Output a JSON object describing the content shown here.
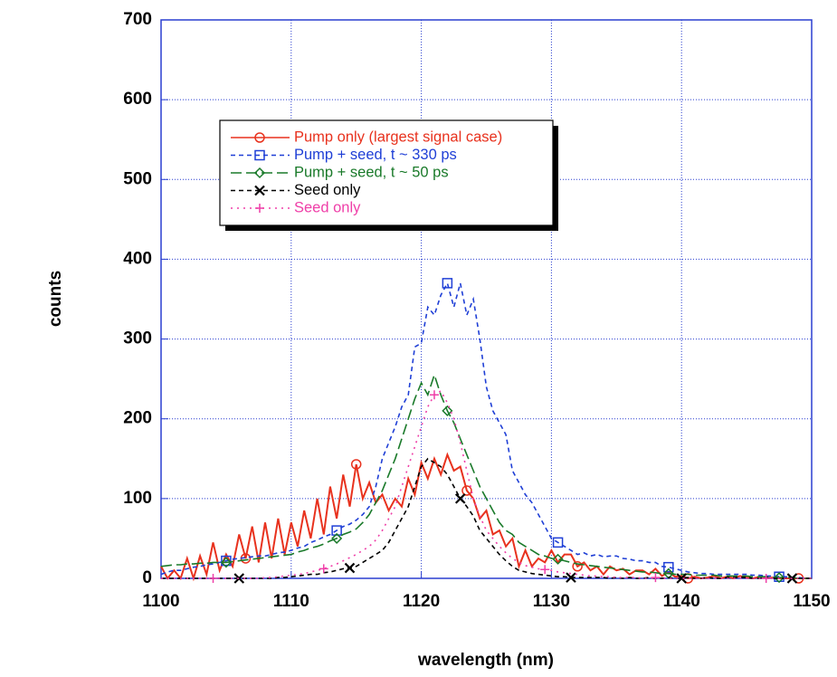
{
  "chart_data": {
    "type": "line",
    "xlabel": "wavelength  (nm)",
    "ylabel": "counts",
    "x": [
      1100,
      1100.5,
      1101,
      1101.5,
      1102,
      1102.5,
      1103,
      1103.5,
      1104,
      1104.5,
      1105,
      1105.5,
      1106,
      1106.5,
      1107,
      1107.5,
      1108,
      1108.5,
      1109,
      1109.5,
      1110,
      1110.5,
      1111,
      1111.5,
      1112,
      1112.5,
      1113,
      1113.5,
      1114,
      1114.5,
      1115,
      1115.5,
      1116,
      1116.5,
      1117,
      1117.5,
      1118,
      1118.5,
      1119,
      1119.5,
      1120,
      1120.5,
      1121,
      1121.5,
      1122,
      1122.5,
      1123,
      1123.5,
      1124,
      1124.5,
      1125,
      1125.5,
      1126,
      1126.5,
      1127,
      1127.5,
      1128,
      1128.5,
      1129,
      1129.5,
      1130,
      1130.5,
      1131,
      1131.5,
      1132,
      1132.5,
      1133,
      1133.5,
      1134,
      1134.5,
      1135,
      1135.5,
      1136,
      1136.5,
      1137,
      1137.5,
      1138,
      1138.5,
      1139,
      1139.5,
      1140,
      1140.5,
      1141,
      1141.5,
      1142,
      1142.5,
      1143,
      1143.5,
      1144,
      1144.5,
      1145,
      1145.5,
      1146,
      1146.5,
      1147,
      1147.5,
      1148,
      1148.5,
      1149,
      1149.5,
      1150
    ],
    "series": [
      {
        "name": "Pump only (largest signal case)",
        "color": "#e8321e",
        "line_style": "solid",
        "marker": "circle",
        "values": [
          15,
          0,
          10,
          0,
          25,
          0,
          28,
          5,
          45,
          10,
          30,
          15,
          55,
          25,
          65,
          20,
          70,
          25,
          75,
          30,
          70,
          40,
          85,
          50,
          100,
          55,
          115,
          75,
          130,
          90,
          143,
          100,
          120,
          95,
          105,
          85,
          100,
          90,
          125,
          105,
          145,
          125,
          150,
          130,
          155,
          135,
          140,
          110,
          100,
          75,
          85,
          55,
          60,
          40,
          50,
          15,
          35,
          15,
          25,
          20,
          35,
          20,
          30,
          30,
          15,
          20,
          10,
          15,
          5,
          15,
          10,
          12,
          5,
          10,
          10,
          5,
          12,
          3,
          8,
          2,
          3,
          0,
          2,
          0,
          1,
          3,
          0,
          2,
          0,
          3,
          1,
          0,
          2,
          0,
          1,
          0,
          0,
          0,
          0,
          0,
          0
        ]
      },
      {
        "name": "Pump + seed, t ~ 330 ps",
        "color": "#1f3fd6",
        "line_style": "dash",
        "marker": "square",
        "values": [
          5,
          8,
          10,
          10,
          12,
          14,
          15,
          17,
          18,
          20,
          22,
          24,
          25,
          26,
          27,
          28,
          28,
          30,
          32,
          33,
          35,
          38,
          40,
          45,
          48,
          52,
          55,
          60,
          65,
          68,
          73,
          80,
          90,
          115,
          150,
          170,
          190,
          215,
          230,
          290,
          295,
          340,
          330,
          355,
          370,
          340,
          370,
          330,
          350,
          300,
          240,
          210,
          195,
          180,
          135,
          120,
          105,
          95,
          80,
          65,
          50,
          45,
          40,
          35,
          30,
          32,
          28,
          30,
          27,
          28,
          28,
          25,
          24,
          22,
          22,
          20,
          20,
          15,
          14,
          12,
          10,
          8,
          7,
          6,
          6,
          5,
          5,
          5,
          5,
          5,
          5,
          4,
          4,
          3,
          3,
          2,
          2,
          1,
          1,
          0,
          0
        ]
      },
      {
        "name": "Pump + seed, t ~ 50 ps",
        "color": "#1a7a2a",
        "line_style": "longdash",
        "marker": "diamond",
        "values": [
          15,
          16,
          17,
          17,
          18,
          18,
          19,
          19,
          20,
          20,
          20,
          21,
          22,
          23,
          24,
          25,
          26,
          27,
          28,
          29,
          30,
          33,
          35,
          38,
          40,
          43,
          47,
          50,
          55,
          58,
          62,
          70,
          80,
          95,
          110,
          130,
          150,
          175,
          200,
          225,
          245,
          230,
          255,
          230,
          210,
          195,
          175,
          155,
          135,
          115,
          100,
          85,
          70,
          60,
          55,
          45,
          40,
          35,
          30,
          28,
          25,
          24,
          22,
          20,
          18,
          17,
          16,
          15,
          14,
          13,
          12,
          11,
          10,
          9,
          8,
          8,
          7,
          6,
          6,
          5,
          5,
          5,
          4,
          4,
          4,
          4,
          3,
          3,
          3,
          3,
          3,
          2,
          2,
          2,
          1,
          1,
          1,
          1,
          0,
          0,
          0
        ]
      },
      {
        "name": "Seed only",
        "color": "#000000",
        "line_style": "dash",
        "marker": "x",
        "values": [
          0,
          0,
          0,
          0,
          0,
          0,
          0,
          0,
          0,
          0,
          0,
          0,
          0,
          0,
          0,
          0,
          0,
          0,
          1,
          1,
          2,
          3,
          4,
          5,
          5,
          7,
          8,
          10,
          12,
          13,
          15,
          20,
          25,
          30,
          35,
          45,
          60,
          75,
          90,
          115,
          140,
          150,
          145,
          140,
          130,
          115,
          100,
          90,
          78,
          60,
          50,
          40,
          30,
          22,
          15,
          10,
          8,
          6,
          5,
          4,
          3,
          2,
          2,
          1,
          1,
          1,
          1,
          1,
          1,
          0,
          1,
          0,
          1,
          0,
          0,
          1,
          0,
          0,
          1,
          0,
          0,
          1,
          0,
          0,
          1,
          0,
          0,
          1,
          1,
          1,
          1,
          0,
          0,
          1,
          0,
          0,
          0,
          0,
          0,
          0,
          0
        ]
      },
      {
        "name": "Seed only",
        "color": "#ef3fa8",
        "line_style": "dot",
        "marker": "plus",
        "values": [
          0,
          0,
          0,
          0,
          0,
          0,
          0,
          0,
          0,
          0,
          0,
          0,
          0,
          0,
          0,
          0,
          1,
          1,
          2,
          3,
          4,
          5,
          6,
          8,
          10,
          12,
          15,
          18,
          22,
          26,
          30,
          35,
          40,
          48,
          60,
          75,
          90,
          115,
          140,
          165,
          190,
          215,
          230,
          235,
          220,
          200,
          170,
          135,
          100,
          78,
          60,
          50,
          40,
          32,
          25,
          20,
          16,
          14,
          12,
          11,
          10,
          8,
          7,
          6,
          5,
          4,
          3,
          3,
          2,
          2,
          1,
          1,
          1,
          1,
          0,
          0,
          1,
          0,
          0,
          0,
          0,
          0,
          0,
          0,
          0,
          0,
          0,
          0,
          0,
          0,
          0,
          0,
          0,
          0,
          0,
          0,
          0,
          0,
          0,
          0,
          0
        ]
      }
    ],
    "xlim": [
      1100,
      1150
    ],
    "xticks": [
      1100,
      1110,
      1120,
      1130,
      1140,
      1150
    ],
    "ylim": [
      0,
      700
    ],
    "yticks": [
      0,
      100,
      200,
      300,
      400,
      500,
      600,
      700
    ],
    "grid": true,
    "legend": "upper left"
  }
}
